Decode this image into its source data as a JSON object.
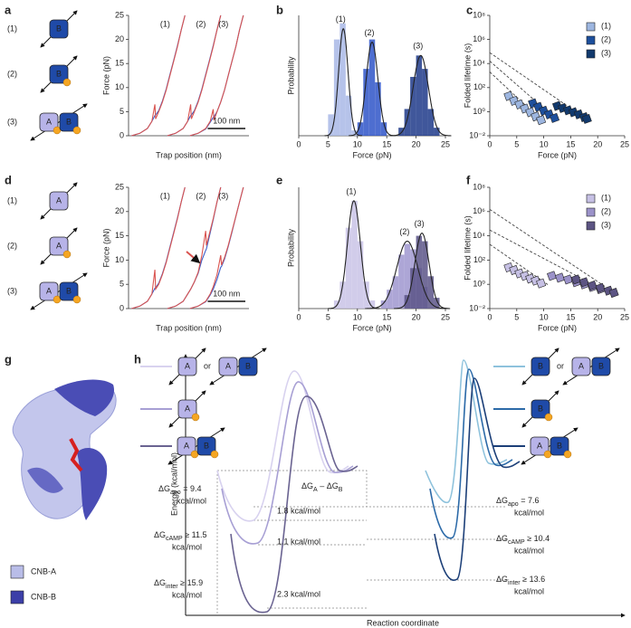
{
  "panel_letters": [
    "a",
    "b",
    "c",
    "d",
    "e",
    "f",
    "g",
    "h"
  ],
  "constructs_a": [
    {
      "label": "(1)",
      "boxes": [
        "B"
      ]
    },
    {
      "label": "(2)",
      "boxes": [
        "B"
      ]
    },
    {
      "label": "(3)",
      "boxes": [
        "A",
        "B"
      ]
    }
  ],
  "constructs_d": [
    {
      "label": "(1)",
      "boxes": [
        "A"
      ]
    },
    {
      "label": "(2)",
      "boxes": [
        "A"
      ]
    },
    {
      "label": "(3)",
      "boxes": [
        "A",
        "B"
      ]
    }
  ],
  "chart_data": [
    {
      "type": "line",
      "xlabel": "Trap position (nm)",
      "ylabel": "Force (pN)",
      "xlim": [
        0,
        320
      ],
      "ylim": [
        0,
        25
      ],
      "yticks": [
        0,
        5,
        10,
        15,
        20,
        25
      ],
      "scalebar": {
        "value": 100,
        "label": "100 nm"
      },
      "series": [
        {
          "name": "(1)",
          "color": "#d9534f",
          "relax_color": "#3b5ec9",
          "x": [
            8,
            30,
            50,
            62,
            70,
            72,
            80,
            90,
            100,
            110,
            120,
            130,
            140,
            150
          ],
          "values": [
            0,
            0.5,
            1.5,
            3,
            6.5,
            3.5,
            5,
            7,
            9.5,
            12.5,
            15.5,
            18.5,
            22,
            25
          ],
          "relax_values": [
            0,
            0.5,
            1.5,
            3,
            4.2,
            4.3,
            5.2,
            7.2,
            9.7,
            12.7,
            15.7,
            18.7,
            22,
            25
          ]
        },
        {
          "name": "(2)",
          "color": "#d9534f",
          "relax_color": "#3b5ec9",
          "x": [
            103,
            125,
            145,
            157,
            165,
            167,
            175,
            185,
            195,
            205,
            215,
            225,
            235,
            245
          ],
          "values": [
            0,
            0.5,
            1.5,
            3,
            6.5,
            3.5,
            5,
            7,
            9.5,
            12.5,
            15.5,
            18.5,
            22,
            25
          ],
          "relax_values": [
            0,
            0.5,
            1.5,
            3,
            4.2,
            4.3,
            5.2,
            7.2,
            9.7,
            12.7,
            15.7,
            18.7,
            22,
            25
          ]
        },
        {
          "name": "(3)",
          "color": "#d9534f",
          "relax_color": "#3b5ec9",
          "x": [
            163,
            185,
            205,
            217,
            225,
            227,
            235,
            245,
            255,
            265,
            275,
            285,
            295,
            305
          ],
          "values": [
            0,
            0.5,
            1.5,
            3,
            5.5,
            3.2,
            5,
            7,
            9.5,
            12.5,
            15.5,
            18.5,
            22,
            25
          ],
          "relax_values": [
            0,
            0.5,
            1.4,
            2.8,
            3.8,
            3.9,
            5,
            7,
            9.5,
            12.5,
            15.5,
            18.5,
            22,
            25
          ]
        }
      ]
    },
    {
      "type": "histogram",
      "xlabel": "Force (pN)",
      "ylabel": "Probability",
      "xlim": [
        0,
        25
      ],
      "xticks": [
        0,
        5,
        10,
        15,
        20,
        25
      ],
      "ylim": [
        0,
        0.45
      ],
      "series": [
        {
          "name": "(1)",
          "color": "#a9b8e6",
          "bins": [
            5,
            6,
            7,
            8,
            9,
            10
          ],
          "values": [
            0.08,
            0.36,
            0.42,
            0.15,
            0.02
          ],
          "fit": {
            "mean": 7.6,
            "sd": 0.8,
            "peak": 0.4
          }
        },
        {
          "name": "(2)",
          "color": "#2f55c8",
          "bins": [
            10,
            11,
            12,
            13,
            14,
            15
          ],
          "values": [
            0.05,
            0.25,
            0.36,
            0.2,
            0.05
          ],
          "fit": {
            "mean": 12.5,
            "sd": 1.0,
            "peak": 0.35
          }
        },
        {
          "name": "(3)",
          "color": "#1e3a8a",
          "bins": [
            17,
            18,
            19,
            20,
            21,
            22,
            23,
            24
          ],
          "values": [
            0.03,
            0.1,
            0.22,
            0.3,
            0.25,
            0.1,
            0.03
          ],
          "fit": {
            "mean": 20.8,
            "sd": 1.3,
            "peak": 0.3
          }
        }
      ]
    },
    {
      "type": "scatter",
      "xlabel": "Force (pN)",
      "ylabel": "Folded lifetime (s)",
      "ylog": true,
      "legend": "upper right",
      "xlim": [
        0,
        25
      ],
      "xticks": [
        0,
        5,
        10,
        15,
        20,
        25
      ],
      "ylim": [
        0.01,
        100000000
      ],
      "yticks": [
        {
          "value": 0.01,
          "label": "10⁻²"
        },
        {
          "value": 1,
          "label": "10⁰"
        },
        {
          "value": 100,
          "label": "10²"
        },
        {
          "value": 10000,
          "label": "10⁴"
        },
        {
          "value": 1000000,
          "label": "10⁶"
        },
        {
          "value": 100000000,
          "label": "10⁸"
        }
      ],
      "series": [
        {
          "name": "(1)",
          "color": "#9db6e0",
          "x": [
            3.5,
            4.5,
            5.5,
            6.5,
            7.5,
            8.5,
            9.5
          ],
          "values": [
            20,
            8,
            4,
            1.8,
            0.9,
            0.4,
            0.2
          ],
          "fit_x": [
            0,
            10
          ],
          "fit_values": [
            2000,
            0.13
          ]
        },
        {
          "name": "(2)",
          "color": "#1d4f9c",
          "x": [
            8,
            9,
            10,
            11,
            12
          ],
          "values": [
            5,
            2.5,
            1.2,
            0.6,
            0.3
          ],
          "fit_x": [
            0,
            12.5
          ],
          "fit_values": [
            16000,
            0.2
          ]
        },
        {
          "name": "(3)",
          "color": "#123a6e",
          "x": [
            12.5,
            13.5,
            14.5,
            15.5,
            16.5,
            17.5,
            18
          ],
          "values": [
            3,
            2,
            1.3,
            0.9,
            0.6,
            0.35,
            0.25
          ],
          "fit_x": [
            0,
            18.5
          ],
          "fit_values": [
            80000,
            0.16
          ]
        }
      ]
    },
    {
      "type": "line",
      "xlabel": "Trap position (nm)",
      "ylabel": "Force (pN)",
      "xlim": [
        0,
        320
      ],
      "ylim": [
        0,
        25
      ],
      "yticks": [
        0,
        5,
        10,
        15,
        20,
        25
      ],
      "scalebar": {
        "value": 100,
        "label": "100 nm"
      },
      "series": [
        {
          "name": "(1)",
          "color": "#d9534f",
          "relax_color": "#3b5ec9",
          "x": [
            8,
            30,
            50,
            62,
            70,
            72,
            80,
            90,
            100,
            110,
            120,
            130,
            140,
            150
          ],
          "values": [
            0,
            0.5,
            1.5,
            3,
            8,
            4,
            5,
            7,
            9.5,
            12.5,
            15.5,
            18.5,
            22,
            25
          ],
          "relax_values": [
            0,
            0.5,
            1.5,
            3,
            4.2,
            4.3,
            5.2,
            7.2,
            9.7,
            12.7,
            15.7,
            18.7,
            22,
            25
          ]
        },
        {
          "name": "(2)",
          "color": "#d9534f",
          "relax_color": "#3b5ec9",
          "x": [
            103,
            125,
            145,
            157,
            165,
            175,
            185,
            195,
            205,
            207,
            215,
            225,
            235,
            245
          ],
          "values": [
            0,
            0.5,
            1.5,
            3,
            4,
            5.5,
            7.5,
            11,
            16,
            13,
            15.5,
            18.5,
            22,
            25
          ],
          "relax_values": [
            0,
            0.5,
            1.5,
            3,
            4,
            5.5,
            7.3,
            10,
            12,
            12.3,
            15,
            18.3,
            22,
            25
          ]
        },
        {
          "name": "(3)",
          "color": "#d9534f",
          "relax_color": "#3b5ec9",
          "x": [
            163,
            185,
            205,
            217,
            225,
            235,
            245,
            247,
            255,
            265,
            275,
            285,
            295,
            305
          ],
          "values": [
            0,
            0.5,
            1.5,
            3,
            4.5,
            7,
            11,
            9,
            10.5,
            13,
            16,
            19,
            22,
            25
          ],
          "relax_values": [
            0,
            0.5,
            1.4,
            2.8,
            4,
            6,
            8.5,
            8.7,
            10.2,
            12.8,
            15.8,
            19,
            22,
            25
          ]
        }
      ]
    },
    {
      "type": "histogram",
      "xlabel": "Force (pN)",
      "ylabel": "Probability",
      "xlim": [
        0,
        25
      ],
      "xticks": [
        0,
        5,
        10,
        15,
        20,
        25
      ],
      "ylim": [
        0,
        0.45
      ],
      "series": [
        {
          "name": "(1)",
          "color": "#c9c3e6",
          "bins": [
            6,
            7,
            8,
            9,
            10,
            11,
            12,
            13
          ],
          "values": [
            0.03,
            0.1,
            0.3,
            0.4,
            0.25,
            0.1,
            0.03
          ],
          "fit": {
            "mean": 9.4,
            "sd": 1.1,
            "peak": 0.4
          }
        },
        {
          "name": "(2)",
          "color": "#9f96cf",
          "bins": [
            14,
            15,
            16,
            17,
            18,
            19,
            20,
            21,
            22
          ],
          "values": [
            0.03,
            0.07,
            0.12,
            0.2,
            0.24,
            0.22,
            0.15,
            0.08
          ],
          "fit": {
            "mean": 18.5,
            "sd": 1.8,
            "peak": 0.25
          }
        },
        {
          "name": "(3)",
          "color": "#5b5487",
          "bins": [
            18,
            19,
            20,
            21,
            22,
            23,
            24
          ],
          "values": [
            0.05,
            0.15,
            0.27,
            0.25,
            0.12,
            0.04
          ],
          "fit": {
            "mean": 21,
            "sd": 1.2,
            "peak": 0.28
          }
        }
      ]
    },
    {
      "type": "scatter",
      "xlabel": "Force (pN)",
      "ylabel": "Folded lifetime (s)",
      "ylog": true,
      "legend": "upper right",
      "xlim": [
        0,
        25
      ],
      "xticks": [
        0,
        5,
        10,
        15,
        20,
        25
      ],
      "ylim": [
        0.01,
        100000000
      ],
      "yticks": [
        {
          "value": 0.01,
          "label": "10⁻²"
        },
        {
          "value": 1,
          "label": "10⁰"
        },
        {
          "value": 100,
          "label": "10²"
        },
        {
          "value": 10000,
          "label": "10⁴"
        },
        {
          "value": 1000000,
          "label": "10⁶"
        },
        {
          "value": 100000000,
          "label": "10⁸"
        }
      ],
      "series": [
        {
          "name": "(1)",
          "color": "#c6c0e4",
          "x": [
            3.5,
            4.5,
            5.5,
            6.5,
            7.5,
            8.5,
            9.5
          ],
          "values": [
            25,
            15,
            8,
            5,
            3,
            2,
            1.2
          ],
          "fit_x": [
            0,
            11
          ],
          "fit_values": [
            2000,
            0.8
          ]
        },
        {
          "name": "(2)",
          "color": "#9b92c9",
          "x": [
            11.5,
            13,
            14.5,
            16,
            17.5,
            19,
            20.5
          ],
          "values": [
            5,
            3.5,
            2.5,
            1.5,
            1,
            0.6,
            0.4
          ],
          "fit_x": [
            0,
            21
          ],
          "fit_values": [
            30000,
            0.35
          ]
        },
        {
          "name": "(3)",
          "color": "#5c5483",
          "x": [
            16,
            17.5,
            19,
            20.5,
            22,
            23
          ],
          "values": [
            2.5,
            1.5,
            0.8,
            0.5,
            0.3,
            0.2
          ],
          "fit_x": [
            0,
            23.5
          ],
          "fit_values": [
            1500000,
            0.15
          ]
        }
      ]
    }
  ],
  "structure_legend": [
    {
      "label": "CNB-A",
      "color": "#b9bde8"
    },
    {
      "label": "CNB-B",
      "color": "#3c3fa8"
    }
  ],
  "energy": {
    "ylabel": "Energy (kcal/mol)",
    "xlabel": "Reaction coordinate",
    "or": "or",
    "left_keys": [
      [
        "A"
      ],
      [
        "A"
      ],
      [
        "A",
        "B"
      ]
    ],
    "left_alt": [
      "A",
      "B"
    ],
    "right_keys": [
      [
        "B"
      ],
      [
        "B"
      ],
      [
        "A",
        "B"
      ]
    ],
    "right_alt": [
      "A",
      "B"
    ],
    "left_labels": [
      {
        "symbol": "ΔG",
        "sub": "apo",
        "rel": " = 9.4",
        "unit": "kcal/mol"
      },
      {
        "symbol": "ΔG",
        "sub": "cAMP",
        "rel": " ≥ 11.5",
        "unit": "kcal/mol"
      },
      {
        "symbol": "ΔG",
        "sub": "inter",
        "rel": " ≥ 15.9",
        "unit": "kcal/mol"
      }
    ],
    "right_labels": [
      {
        "symbol": "ΔG",
        "sub": "apo",
        "rel": " = 7.6",
        "unit": "kcal/mol"
      },
      {
        "symbol": "ΔG",
        "sub": "cAMP",
        "rel": " ≥ 10.4",
        "unit": "kcal/mol"
      },
      {
        "symbol": "ΔG",
        "sub": "inter",
        "rel": " ≥ 13.6",
        "unit": "kcal/mol"
      }
    ],
    "differences": [
      "1.8 kcal/mol",
      "1.1 kcal/mol",
      "2.3 kcal/mol"
    ],
    "difference_title": {
      "a": "ΔG",
      "a_sub": "A",
      "minus": " – ",
      "b": "ΔG",
      "b_sub": "B"
    }
  }
}
